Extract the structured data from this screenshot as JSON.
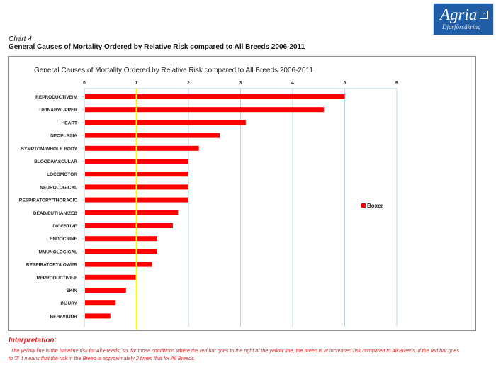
{
  "logo": {
    "name": "Agria",
    "mark": "h",
    "tagline": "Djurförsäkring"
  },
  "header": {
    "chart_number": "Chart 4",
    "title": "General Causes of Mortality Ordered by Relative Risk compared to All Breeds 2006-2011"
  },
  "chart_data": {
    "type": "bar",
    "orientation": "horizontal",
    "title": "General Causes of Mortality Ordered by Relative Risk compared to All Breeds 2006-2011",
    "categories": [
      "REPRODUCTIVE/M",
      "URINARY/UPPER",
      "HEART",
      "NEOPLASIA",
      "SYMPTOM/WHOLE BODY",
      "BLOOD/VASCULAR",
      "LOCOMOTOR",
      "NEUROLOGICAL",
      "RESPIRATORY/THORACIC",
      "DEAD/EUTHANIZED",
      "DIGESTIVE",
      "ENDOCRINE",
      "IMMUNOLOGICAL",
      "RESPIRATORY/LOWER",
      "REPRODUCTIVE/F",
      "SKIN",
      "INJURY",
      "BEHAVIOUR"
    ],
    "series": [
      {
        "name": "Boxer",
        "values": [
          5.0,
          4.6,
          3.1,
          2.6,
          2.2,
          2.0,
          2.0,
          2.0,
          2.0,
          1.8,
          1.7,
          1.4,
          1.4,
          1.3,
          1.0,
          0.8,
          0.6,
          0.5
        ]
      }
    ],
    "xlim": [
      0,
      6
    ],
    "xticks": [
      0,
      1,
      2,
      3,
      4,
      5,
      6
    ],
    "baseline": 1,
    "grid": "vertical",
    "legend_position": "right",
    "colors": {
      "bar": "#ff0000",
      "baseline": "#ffff00",
      "grid": "#b7d3e0",
      "axis": "#b7d3e0"
    }
  },
  "interpretation": {
    "title": "Interpretation:",
    "text": "The yellow line is the baseline risk for All Breeds; so, for those conditions where the red bar goes to the right of the yellow line, the breed is at increased risk compared to All Breeds.  If the red bar goes to '2' it means that the risk in the Breed is approximately 2 times that for All Breeds."
  }
}
